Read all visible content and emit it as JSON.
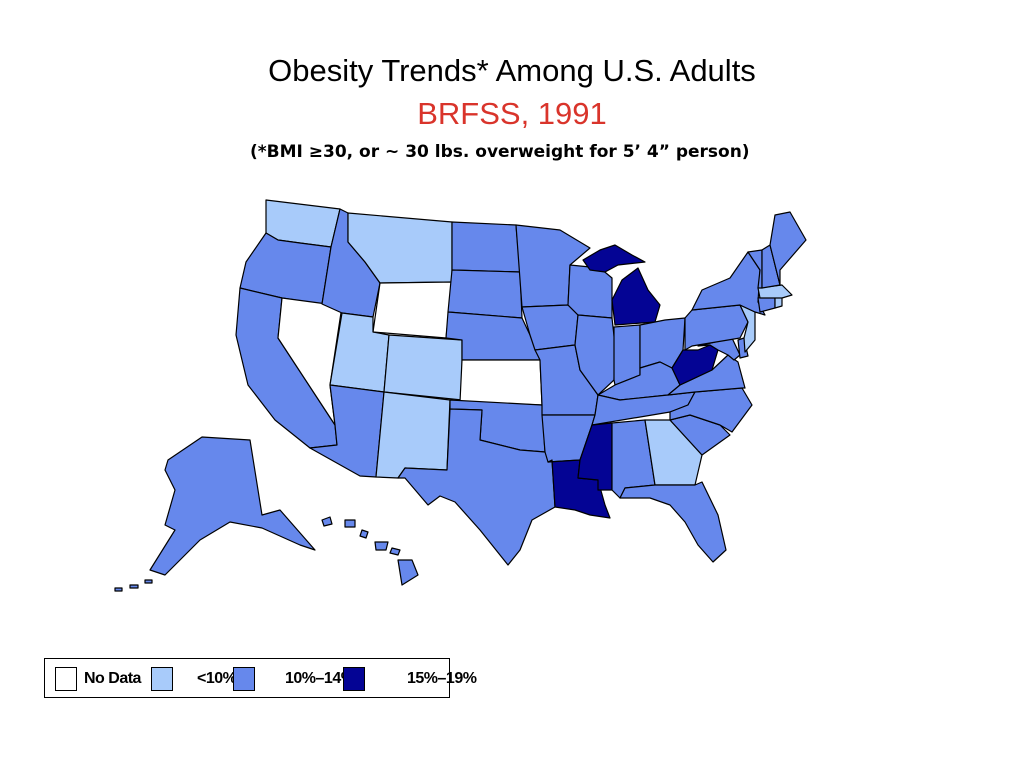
{
  "title": "Obesity Trends* Among U.S. Adults",
  "subtitle": "BRFSS, 1991",
  "note": "(*BMI ≥30, or ~ 30 lbs. overweight for 5’ 4” person)",
  "colors": {
    "subtitle": "#d9342b",
    "no_data": "#ffffff",
    "lt10": "#a8cbfa",
    "r10_14": "#6688ec",
    "r15_19": "#040494",
    "border": "#000000"
  },
  "legend": [
    {
      "key": "no_data",
      "label": "No Data"
    },
    {
      "key": "lt10",
      "label": "<10%"
    },
    {
      "key": "r10_14",
      "label": "10%–14%"
    },
    {
      "key": "r15_19",
      "label": "15%–19%"
    }
  ],
  "states": {
    "WA": "lt10",
    "OR": "r10_14",
    "CA": "r10_14",
    "NV": "no_data",
    "ID": "r10_14",
    "MT": "lt10",
    "WY": "no_data",
    "UT": "lt10",
    "CO": "lt10",
    "AZ": "r10_14",
    "NM": "lt10",
    "ND": "r10_14",
    "SD": "r10_14",
    "NE": "r10_14",
    "KS": "no_data",
    "OK": "r10_14",
    "TX": "r10_14",
    "MN": "r10_14",
    "IA": "r10_14",
    "MO": "r10_14",
    "AR": "r10_14",
    "LA": "r15_19",
    "WI": "r10_14",
    "IL": "r10_14",
    "MI": "r15_19",
    "IN": "r10_14",
    "OH": "r10_14",
    "KY": "r10_14",
    "TN": "r10_14",
    "MS": "r15_19",
    "AL": "r10_14",
    "GA": "lt10",
    "FL": "r10_14",
    "SC": "r10_14",
    "NC": "r10_14",
    "VA": "r10_14",
    "WV": "r15_19",
    "PA": "r10_14",
    "NY": "r10_14",
    "VT": "r10_14",
    "NH": "r10_14",
    "ME": "r10_14",
    "MA": "lt10",
    "RI": "lt10",
    "CT": "r10_14",
    "NJ": "lt10",
    "DE": "r10_14",
    "MD": "r10_14",
    "AK": "r10_14",
    "HI": "r10_14"
  }
}
